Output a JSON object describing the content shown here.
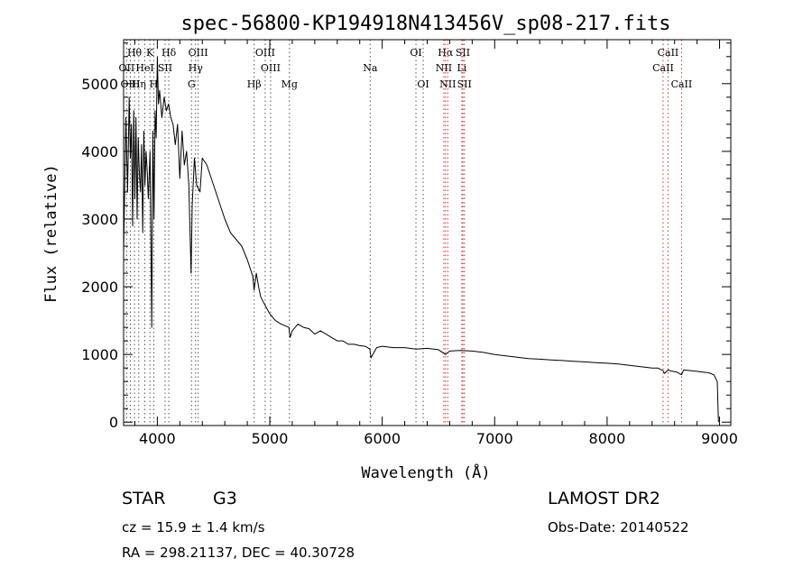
{
  "chart_data": {
    "type": "line",
    "title": "spec-56800-KP194918N413456V_sp08-217.fits",
    "xlabel": "Wavelength (Å)",
    "ylabel": "Flux (relative)",
    "xlim": [
      3700,
      9100
    ],
    "ylim": [
      -50,
      5650
    ],
    "x_ticks": [
      4000,
      5000,
      6000,
      7000,
      8000,
      9000
    ],
    "y_ticks": [
      0,
      1000,
      2000,
      3000,
      4000,
      5000
    ],
    "grid": false,
    "series": [
      {
        "x": [
          3700,
          3720,
          3735,
          3750,
          3760,
          3770,
          3780,
          3790,
          3800,
          3810,
          3820,
          3830,
          3840,
          3850,
          3860,
          3870,
          3880,
          3890,
          3900,
          3910,
          3920,
          3935,
          3950,
          3960,
          3970,
          3980,
          3990,
          4000,
          4010,
          4020,
          4040,
          4060,
          4080,
          4100,
          4120,
          4140,
          4160,
          4180,
          4200,
          4220,
          4240,
          4260,
          4280,
          4300,
          4310,
          4330,
          4350,
          4380,
          4400,
          4440,
          4480,
          4520,
          4560,
          4600,
          4650,
          4700,
          4750,
          4800,
          4850,
          4860,
          4880,
          4900,
          4920,
          4950,
          5000,
          5050,
          5100,
          5170,
          5180,
          5200,
          5250,
          5300,
          5350,
          5400,
          5450,
          5500,
          5550,
          5600,
          5650,
          5700,
          5750,
          5800,
          5850,
          5890,
          5900,
          5950,
          6000,
          6100,
          6200,
          6300,
          6400,
          6500,
          6563,
          6600,
          6700,
          6800,
          6900,
          7000,
          7100,
          7200,
          7300,
          7400,
          7500,
          7600,
          7700,
          7800,
          7900,
          8000,
          8100,
          8200,
          8300,
          8400,
          8450,
          8498,
          8510,
          8542,
          8560,
          8620,
          8662,
          8680,
          8750,
          8800,
          8850,
          8900,
          8950,
          8980,
          8990
        ],
        "y": [
          2500,
          4500,
          3400,
          4800,
          3900,
          4400,
          2900,
          4600,
          3300,
          4500,
          3000,
          4200,
          3700,
          3400,
          4100,
          2800,
          4300,
          3500,
          4000,
          3700,
          3300,
          4000,
          1400,
          4300,
          3000,
          4600,
          4200,
          5400,
          4700,
          4900,
          4500,
          4800,
          4600,
          4700,
          4500,
          4400,
          4100,
          4400,
          3600,
          4300,
          3800,
          4000,
          3500,
          2200,
          3200,
          3900,
          3500,
          3400,
          3900,
          3800,
          3600,
          3400,
          3200,
          3000,
          2800,
          2700,
          2600,
          2400,
          2150,
          1950,
          2200,
          2000,
          1850,
          1750,
          1600,
          1500,
          1450,
          1400,
          1250,
          1350,
          1450,
          1400,
          1380,
          1300,
          1350,
          1300,
          1250,
          1200,
          1200,
          1150,
          1150,
          1130,
          1120,
          1080,
          950,
          1100,
          1120,
          1100,
          1100,
          1080,
          1090,
          1070,
          1000,
          1050,
          1060,
          1050,
          1030,
          1000,
          980,
          960,
          940,
          930,
          920,
          910,
          900,
          890,
          880,
          870,
          860,
          840,
          820,
          800,
          800,
          760,
          720,
          770,
          760,
          740,
          700,
          770,
          760,
          750,
          740,
          730,
          700,
          600,
          0
        ]
      }
    ],
    "line_markers": [
      {
        "name": "Hθ",
        "x": 3797,
        "row": 0,
        "color": "#555555"
      },
      {
        "name": "K",
        "x": 3934,
        "row": 0,
        "color": "#555555"
      },
      {
        "name": "Hδ",
        "x": 4102,
        "row": 0,
        "color": "#555555"
      },
      {
        "name": "OIII",
        "x": 4363,
        "row": 0,
        "color": "#555555"
      },
      {
        "name": "OIII",
        "x": 4959,
        "row": 0,
        "color": "#555555"
      },
      {
        "name": "OI",
        "x": 6300,
        "row": 0,
        "color": "#555555"
      },
      {
        "name": "Hα",
        "x": 6563,
        "row": 0,
        "color": "#cc3333"
      },
      {
        "name": "SII",
        "x": 6717,
        "row": 0,
        "color": "#cc3333"
      },
      {
        "name": "CaII",
        "x": 8542,
        "row": 0,
        "color": "#cc3333"
      },
      {
        "name": "OII",
        "x": 3727,
        "row": 1,
        "color": "#555555"
      },
      {
        "name": "HeI",
        "x": 3889,
        "row": 1,
        "color": "#555555"
      },
      {
        "name": "SII",
        "x": 4069,
        "row": 1,
        "color": "#555555"
      },
      {
        "name": "Hγ",
        "x": 4340,
        "row": 1,
        "color": "#555555"
      },
      {
        "name": "OIII",
        "x": 5007,
        "row": 1,
        "color": "#555555"
      },
      {
        "name": "Na",
        "x": 5893,
        "row": 1,
        "color": "#555555"
      },
      {
        "name": "NII",
        "x": 6548,
        "row": 1,
        "color": "#cc3333"
      },
      {
        "name": "Li",
        "x": 6708,
        "row": 1,
        "color": "#cc3333"
      },
      {
        "name": "CaII",
        "x": 8498,
        "row": 1,
        "color": "#cc3333"
      },
      {
        "name": "OIII",
        "x": 3760,
        "row": 2,
        "color": "#555555"
      },
      {
        "name": "Hη",
        "x": 3835,
        "row": 2,
        "color": "#555555"
      },
      {
        "name": "H",
        "x": 3968,
        "row": 2,
        "color": "#555555"
      },
      {
        "name": "G",
        "x": 4304,
        "row": 2,
        "color": "#555555"
      },
      {
        "name": "Hβ",
        "x": 4861,
        "row": 2,
        "color": "#555555"
      },
      {
        "name": "Mg",
        "x": 5175,
        "row": 2,
        "color": "#555555"
      },
      {
        "name": "OI",
        "x": 6364,
        "row": 2,
        "color": "#555555"
      },
      {
        "name": "NII",
        "x": 6583,
        "row": 2,
        "color": "#cc3333"
      },
      {
        "name": "SII",
        "x": 6731,
        "row": 2,
        "color": "#cc3333"
      },
      {
        "name": "CaII",
        "x": 8662,
        "row": 2,
        "color": "#cc3333"
      }
    ]
  },
  "info": {
    "object_class": "STAR",
    "subclass": "G3",
    "survey": "LAMOST DR2",
    "cz": "cz = 15.9 ± 1.4 km/s",
    "obs_date": "Obs-Date: 20140522",
    "coords": "RA = 298.21137, DEC =  40.30728"
  }
}
